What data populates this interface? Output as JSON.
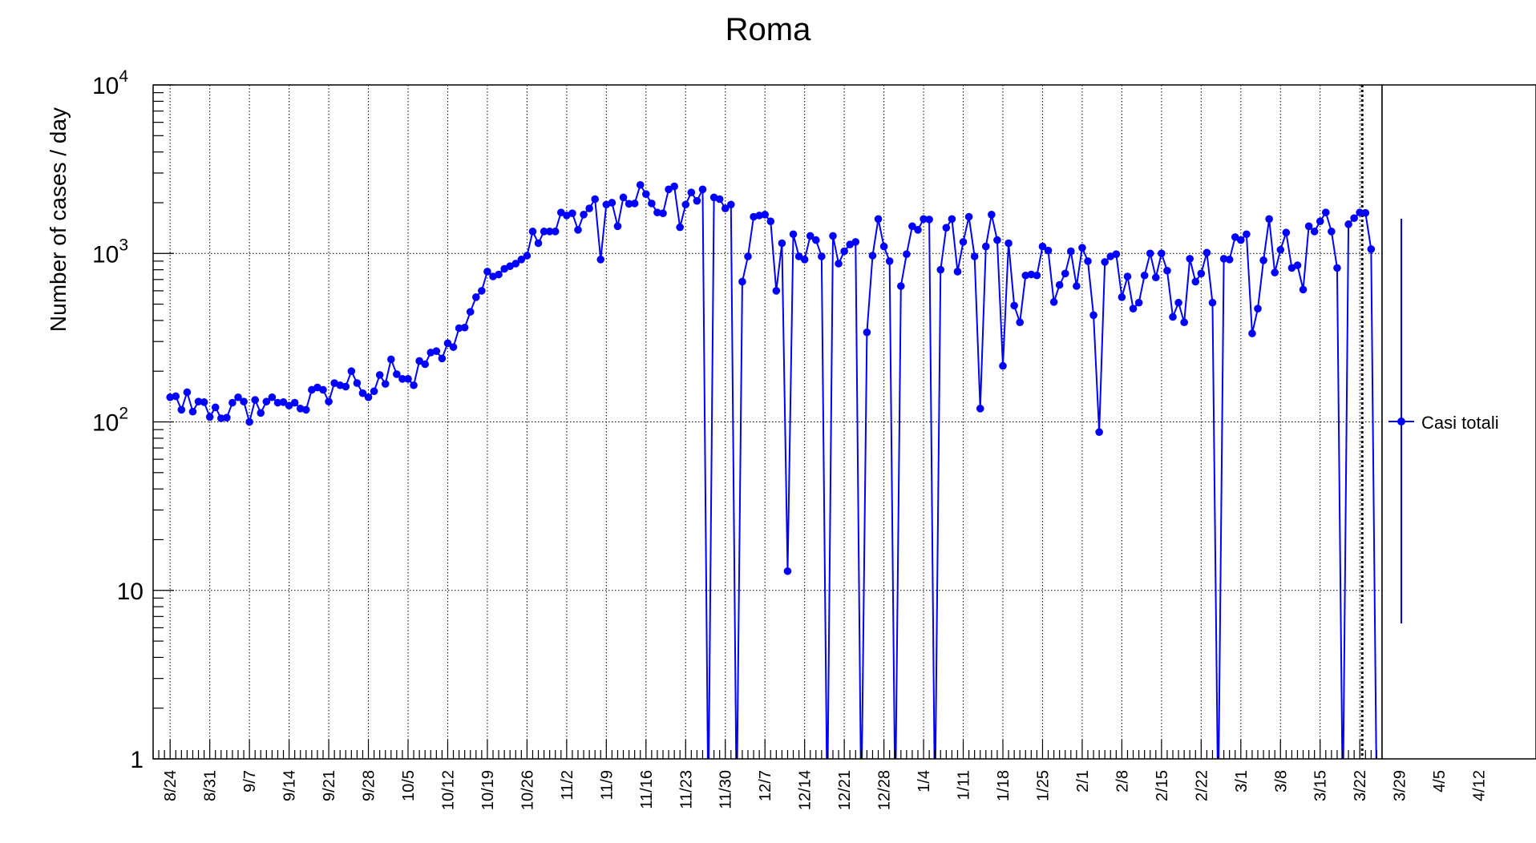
{
  "chart_data": {
    "type": "line",
    "title": "Roma",
    "ylabel": "Number of cases / day",
    "xlabel": "",
    "yscale": "log",
    "ylim": [
      1,
      10000
    ],
    "xlim": [
      "8/21",
      "4/21"
    ],
    "y_ticks": [
      {
        "value": 1,
        "base": "1",
        "exp": ""
      },
      {
        "value": 10,
        "base": "10",
        "exp": ""
      },
      {
        "value": 100,
        "base": "10",
        "exp": "2"
      },
      {
        "value": 1000,
        "base": "10",
        "exp": "3"
      },
      {
        "value": 10000,
        "base": "10",
        "exp": "4"
      }
    ],
    "x_ticks": [
      "8/24",
      "8/31",
      "9/7",
      "9/14",
      "9/21",
      "9/28",
      "10/5",
      "10/12",
      "10/19",
      "10/26",
      "11/2",
      "11/9",
      "11/16",
      "11/23",
      "11/30",
      "12/7",
      "12/14",
      "12/21",
      "12/28",
      "1/4",
      "1/11",
      "1/18",
      "1/25",
      "2/1",
      "2/8",
      "2/15",
      "2/22",
      "3/1",
      "3/8",
      "3/15",
      "3/22",
      "3/29",
      "4/5",
      "4/12"
    ],
    "grid": true,
    "marker_line_date": "3/22",
    "legend_position": "right",
    "series": [
      {
        "name": "Casi totali",
        "color": "#0000ff",
        "start_date": "8/24",
        "values": [
          140,
          142,
          118,
          150,
          115,
          132,
          131,
          107,
          122,
          105,
          106,
          130,
          140,
          132,
          100,
          135,
          113,
          132,
          140,
          130,
          131,
          125,
          130,
          120,
          118,
          155,
          160,
          155,
          132,
          170,
          165,
          162,
          200,
          170,
          148,
          140,
          152,
          190,
          168,
          235,
          192,
          180,
          180,
          165,
          230,
          220,
          258,
          263,
          238,
          293,
          278,
          360,
          363,
          450,
          550,
          600,
          780,
          730,
          750,
          810,
          840,
          870,
          920,
          970,
          1350,
          1150,
          1350,
          1350,
          1350,
          1750,
          1680,
          1730,
          1380,
          1700,
          1850,
          2100,
          920,
          1950,
          2000,
          1450,
          2150,
          1970,
          1980,
          2550,
          2250,
          1980,
          1750,
          1730,
          2400,
          2500,
          1430,
          1950,
          2300,
          2050,
          2400,
          0.5,
          2150,
          2100,
          1850,
          1950,
          0.5,
          680,
          960,
          1650,
          1680,
          1700,
          1550,
          600,
          1150,
          13,
          1300,
          960,
          920,
          1270,
          1200,
          960,
          0.5,
          1270,
          870,
          1030,
          1130,
          1170,
          0.5,
          340,
          970,
          1600,
          1100,
          900,
          0.5,
          640,
          990,
          1450,
          1380,
          1600,
          1590,
          0.5,
          800,
          1420,
          1600,
          780,
          1170,
          1650,
          960,
          120,
          1100,
          1700,
          1200,
          215,
          1150,
          490,
          390,
          740,
          750,
          740,
          1100,
          1040,
          515,
          650,
          760,
          1030,
          640,
          1080,
          900,
          430,
          87,
          890,
          960,
          990,
          550,
          730,
          470,
          510,
          740,
          1000,
          720,
          1000,
          790,
          420,
          510,
          390,
          930,
          680,
          760,
          1010,
          510,
          0.5,
          930,
          920,
          1250,
          1200,
          1300,
          335,
          470,
          910,
          1600,
          770,
          1050,
          1330,
          820,
          850,
          610,
          1450,
          1350,
          1550,
          1750,
          1350,
          820,
          0.5,
          1490,
          1620,
          1750,
          1740,
          1060,
          0.5
        ]
      }
    ]
  }
}
